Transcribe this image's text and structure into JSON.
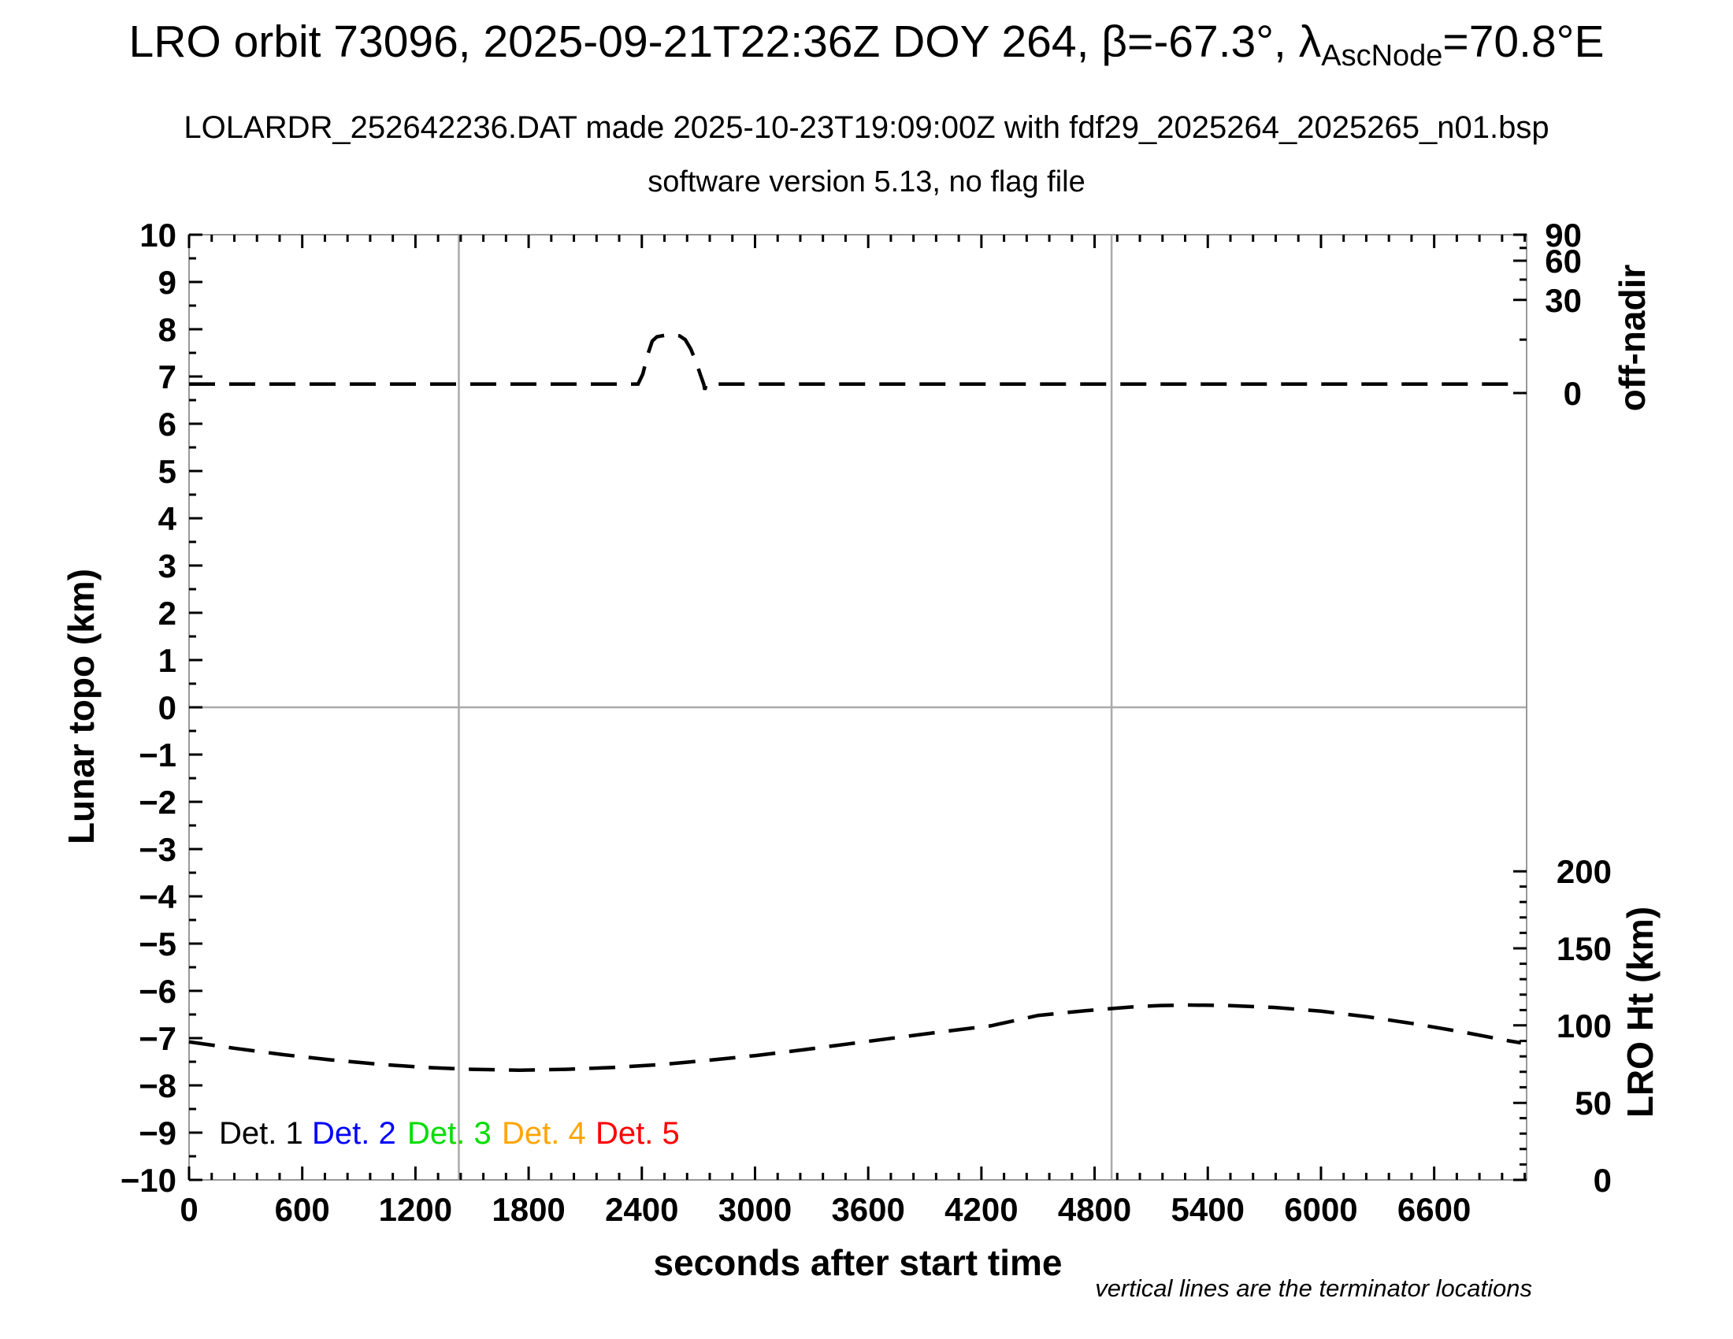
{
  "header": {
    "title": {
      "pre": "LRO orbit 73096, 2025-09-21T22:36Z DOY 264, β=-67.3°, λ",
      "sub": "AscNode",
      "post": "=70.8°E"
    },
    "subtitle1": "LOLARDR_252642236.DAT made 2025-10-23T19:09:00Z with fdf29_2025264_2025265_n01.bsp",
    "subtitle2": "software version 5.13, no flag file"
  },
  "chart_data": {
    "type": "line",
    "title": "LRO orbit 73096, 2025-09-21T22:36Z DOY 264, β=-67.3°, λ_AscNode=70.8°E",
    "xlabel": "seconds after start time",
    "x_range": [
      0,
      7090
    ],
    "x_minor_step": 120,
    "x_ticks": [
      {
        "s": 0,
        "label": "0"
      },
      {
        "s": 600,
        "label": "600"
      },
      {
        "s": 1200,
        "label": "1200"
      },
      {
        "s": 1800,
        "label": "1800"
      },
      {
        "s": 2400,
        "label": "2400"
      },
      {
        "s": 3000,
        "label": "3000"
      },
      {
        "s": 3600,
        "label": "3600"
      },
      {
        "s": 4200,
        "label": "4200"
      },
      {
        "s": 4800,
        "label": "4800"
      },
      {
        "s": 5400,
        "label": "5400"
      },
      {
        "s": 6000,
        "label": "6000"
      },
      {
        "s": 6600,
        "label": "6600"
      }
    ],
    "y_left": {
      "label": "Lunar topo (km)",
      "range": [
        -10,
        10
      ],
      "minor_step": 0.5,
      "ticks": [
        {
          "v": 10,
          "label": "10"
        },
        {
          "v": 9,
          "label": "9"
        },
        {
          "v": 8,
          "label": "8"
        },
        {
          "v": 7,
          "label": "7"
        },
        {
          "v": 6,
          "label": "6"
        },
        {
          "v": 5,
          "label": "5"
        },
        {
          "v": 4,
          "label": "4"
        },
        {
          "v": 3,
          "label": "3"
        },
        {
          "v": 2,
          "label": "2"
        },
        {
          "v": 1,
          "label": "1"
        },
        {
          "v": 0,
          "label": "0"
        },
        {
          "v": -1,
          "label": "−1"
        },
        {
          "v": -2,
          "label": "−2"
        },
        {
          "v": -3,
          "label": "−3"
        },
        {
          "v": -4,
          "label": "−4"
        },
        {
          "v": -5,
          "label": "−5"
        },
        {
          "v": -6,
          "label": "−6"
        },
        {
          "v": -7,
          "label": "−7"
        },
        {
          "v": -8,
          "label": "−8"
        },
        {
          "v": -9,
          "label": "−9"
        },
        {
          "v": -10,
          "label": "−10"
        }
      ]
    },
    "y_right_top": {
      "label": "off-nadir",
      "units": "degrees",
      "scale": "nonlinear (sine-like), 0° at topo 6.65, 90° at topo 10",
      "ticks": [
        {
          "deg": 90,
          "label": "90",
          "topo": 10.0
        },
        {
          "deg": 75,
          "label": "",
          "topo": 9.72
        },
        {
          "deg": 60,
          "label": "60",
          "topo": 9.45
        },
        {
          "deg": 45,
          "label": "",
          "topo": 9.05
        },
        {
          "deg": 30,
          "label": "30",
          "topo": 8.62
        },
        {
          "deg": 15,
          "label": "",
          "topo": 7.78
        },
        {
          "deg": 0,
          "label": "0",
          "topo": 6.65
        }
      ]
    },
    "y_right_bottom": {
      "label": "LRO Ht (km)",
      "units": "km",
      "km_per_topo_unit": 30.61,
      "minor_step_km": 10,
      "ticks": [
        {
          "km": 200,
          "label": "200",
          "topo": -3.47
        },
        {
          "km": 150,
          "label": "150",
          "topo": -5.1
        },
        {
          "km": 100,
          "label": "100",
          "topo": -6.73
        },
        {
          "km": 50,
          "label": "50",
          "topo": -8.37
        },
        {
          "km": 0,
          "label": "0",
          "topo": -10.0
        }
      ]
    },
    "terminator_lines_s": [
      1430,
      4890
    ],
    "zero_line_topo": 0,
    "series": [
      {
        "name": "off-nadir angle",
        "style": "dashed",
        "color": "#000000",
        "description": "flat near 2° off-nadir (topo 6.84) with a slew to ~17° (topo 7.88) between ~2380 s and ~2745 s",
        "points_topo": [
          [
            0,
            6.84
          ],
          [
            300,
            6.84
          ],
          [
            600,
            6.84
          ],
          [
            900,
            6.84
          ],
          [
            1200,
            6.84
          ],
          [
            1500,
            6.84
          ],
          [
            1800,
            6.84
          ],
          [
            2100,
            6.84
          ],
          [
            2380,
            6.84
          ],
          [
            2405,
            7.05
          ],
          [
            2430,
            7.45
          ],
          [
            2455,
            7.75
          ],
          [
            2480,
            7.84
          ],
          [
            2520,
            7.87
          ],
          [
            2560,
            7.88
          ],
          [
            2600,
            7.86
          ],
          [
            2630,
            7.78
          ],
          [
            2660,
            7.58
          ],
          [
            2690,
            7.28
          ],
          [
            2712,
            7.02
          ],
          [
            2728,
            6.84
          ],
          [
            2734,
            6.72
          ],
          [
            2742,
            6.84
          ],
          [
            3000,
            6.84
          ],
          [
            3600,
            6.84
          ],
          [
            4200,
            6.84
          ],
          [
            4800,
            6.84
          ],
          [
            5400,
            6.84
          ],
          [
            6000,
            6.84
          ],
          [
            6600,
            6.84
          ],
          [
            7060,
            6.84
          ]
        ]
      },
      {
        "name": "LRO height",
        "style": "dashed",
        "color": "#000000",
        "description": "LRO altitude: ~89 km at start, minimum ~71 km near 1750 s, maximum ~113 km near 5250 s, ~87 km at end",
        "points_topo": [
          [
            0,
            -7.08
          ],
          [
            250,
            -7.22
          ],
          [
            500,
            -7.35
          ],
          [
            750,
            -7.46
          ],
          [
            1000,
            -7.55
          ],
          [
            1250,
            -7.62
          ],
          [
            1500,
            -7.66
          ],
          [
            1750,
            -7.68
          ],
          [
            2000,
            -7.66
          ],
          [
            2250,
            -7.62
          ],
          [
            2500,
            -7.56
          ],
          [
            2750,
            -7.47
          ],
          [
            3000,
            -7.37
          ],
          [
            3250,
            -7.25
          ],
          [
            3500,
            -7.12
          ],
          [
            3750,
            -6.99
          ],
          [
            4000,
            -6.86
          ],
          [
            4250,
            -6.74
          ],
          [
            4500,
            -6.52
          ],
          [
            4750,
            -6.42
          ],
          [
            5000,
            -6.34
          ],
          [
            5150,
            -6.31
          ],
          [
            5300,
            -6.3
          ],
          [
            5500,
            -6.31
          ],
          [
            5750,
            -6.35
          ],
          [
            6000,
            -6.43
          ],
          [
            6250,
            -6.55
          ],
          [
            6500,
            -6.7
          ],
          [
            6750,
            -6.87
          ],
          [
            7000,
            -7.06
          ],
          [
            7060,
            -7.1
          ]
        ]
      }
    ],
    "legend": [
      {
        "label": "Det. 1",
        "color": "#000000"
      },
      {
        "label": "Det. 2",
        "color": "#0000ff"
      },
      {
        "label": "Det. 3",
        "color": "#00dd00"
      },
      {
        "label": "Det. 4",
        "color": "#ffa500"
      },
      {
        "label": "Det. 5",
        "color": "#ff0000"
      }
    ],
    "note": "vertical lines are the terminator locations",
    "grid": "horizontal gray line at topo 0; two vertical gray terminator lines; no other gridlines"
  },
  "colors": {
    "background": "#ffffff",
    "axis_border": "#999999",
    "gray_line": "#aaaaaa",
    "tick": "#000000",
    "text": "#000000"
  }
}
